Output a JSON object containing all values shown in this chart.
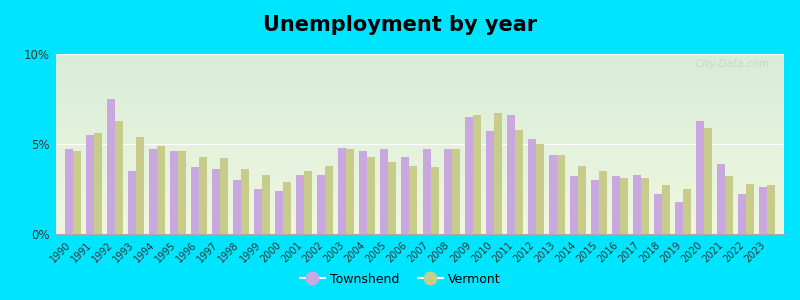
{
  "title": "Unemployment by year",
  "years": [
    1990,
    1991,
    1992,
    1993,
    1994,
    1995,
    1996,
    1997,
    1998,
    1999,
    2000,
    2001,
    2002,
    2003,
    2004,
    2005,
    2006,
    2007,
    2008,
    2009,
    2010,
    2011,
    2012,
    2013,
    2014,
    2015,
    2016,
    2017,
    2018,
    2019,
    2020,
    2021,
    2022,
    2023
  ],
  "townshend": [
    4.7,
    5.5,
    7.5,
    3.5,
    4.7,
    4.6,
    3.7,
    3.6,
    3.0,
    2.5,
    2.4,
    3.3,
    3.3,
    4.8,
    4.6,
    4.7,
    4.3,
    4.7,
    4.7,
    6.5,
    5.7,
    6.6,
    5.3,
    4.4,
    3.2,
    3.0,
    3.2,
    3.3,
    2.2,
    1.8,
    6.3,
    3.9,
    2.2,
    2.6
  ],
  "vermont": [
    4.6,
    5.6,
    6.3,
    5.4,
    4.9,
    4.6,
    4.3,
    4.2,
    3.6,
    3.3,
    2.9,
    3.5,
    3.8,
    4.7,
    4.3,
    4.0,
    3.8,
    3.7,
    4.7,
    6.6,
    6.7,
    5.8,
    5.0,
    4.4,
    3.8,
    3.5,
    3.1,
    3.1,
    2.7,
    2.5,
    5.9,
    3.2,
    2.8,
    2.7
  ],
  "townshend_color": "#c9a8e0",
  "vermont_color": "#c8cc8a",
  "bg_grad_top": "#d8edd8",
  "bg_grad_bot": "#f0f7e0",
  "outer_bg": "#00e5ff",
  "ylim": [
    0,
    10
  ],
  "yticks": [
    0,
    5,
    10
  ],
  "ytick_labels": [
    "0%",
    "5%",
    "10%"
  ],
  "bar_width": 0.38,
  "title_fontsize": 15
}
